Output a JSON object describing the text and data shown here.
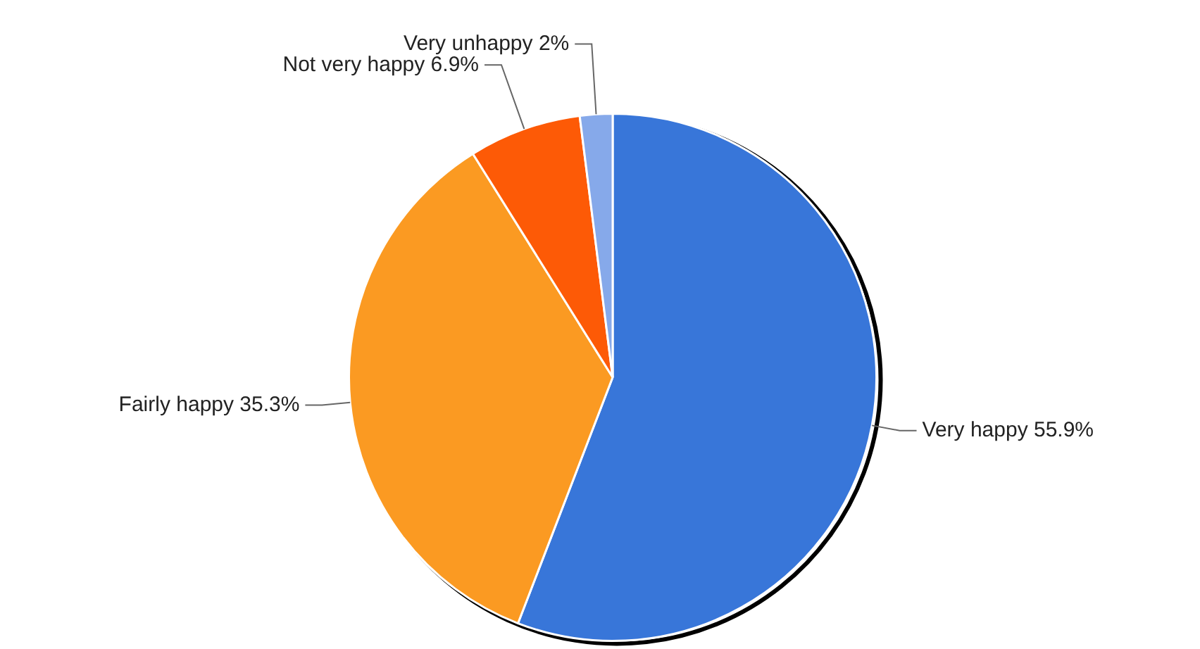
{
  "chart_data": {
    "type": "pie",
    "categories": [
      "Very happy",
      "Fairly happy",
      "Not very happy",
      "Very unhappy"
    ],
    "values": [
      55.9,
      35.3,
      6.9,
      2
    ],
    "value_labels": [
      "55.9%",
      "35.3%",
      "6.9%",
      "2%"
    ],
    "colors": [
      "#3876d9",
      "#fb9a22",
      "#fd5a06",
      "#86a9ea"
    ],
    "legend": false
  }
}
